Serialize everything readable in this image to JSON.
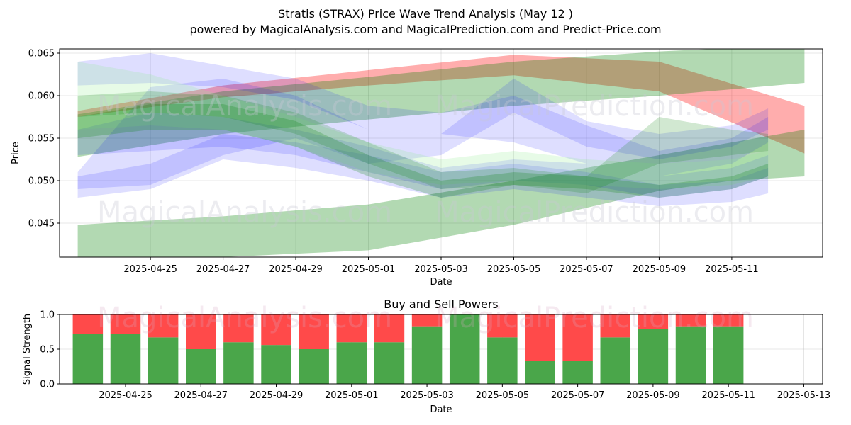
{
  "title": "Stratis (STRAX) Price Wave Trend Analysis (May 12 )",
  "subtitle": "powered by MagicalAnalysis.com and MagicalPrediction.com and Predict-Price.com",
  "watermarks": [
    "MagicalAnalysis.com",
    "MagicalPrediction.com"
  ],
  "chart_data": [
    {
      "type": "area",
      "title": "",
      "xlabel": "Date",
      "ylabel": "Price",
      "xlim": [
        "2025-04-22T12:00",
        "2025-05-13T12:00"
      ],
      "ylim": [
        0.041,
        0.0655
      ],
      "x_ticks": [
        "2025-04-25",
        "2025-04-27",
        "2025-04-29",
        "2025-05-01",
        "2025-05-03",
        "2025-05-05",
        "2025-05-07",
        "2025-05-09",
        "2025-05-11"
      ],
      "y_ticks": [
        0.045,
        0.05,
        0.055,
        0.06,
        0.065
      ],
      "y_tick_labels": [
        "0.045",
        "0.050",
        "0.055",
        "0.060",
        "0.065"
      ],
      "grid": true,
      "colors": {
        "red": "#ff0000",
        "green": "#008000",
        "blue": "#0000ff",
        "light_green": "#90ee90"
      },
      "bands": [
        {
          "color": "red",
          "opacity": 0.32,
          "x": [
            "2025-04-23",
            "2025-04-27",
            "2025-05-01",
            "2025-05-05",
            "2025-05-09",
            "2025-05-13"
          ],
          "lower": [
            0.0575,
            0.0598,
            0.0612,
            0.0624,
            0.0605,
            0.0532
          ],
          "upper": [
            0.0582,
            0.0612,
            0.063,
            0.0648,
            0.064,
            0.0588
          ]
        },
        {
          "color": "green",
          "opacity": 0.3,
          "x": [
            "2025-04-23",
            "2025-04-27",
            "2025-05-01",
            "2025-05-05",
            "2025-05-09",
            "2025-05-13"
          ],
          "lower": [
            0.0528,
            0.0555,
            0.0572,
            0.0588,
            0.06,
            0.0615
          ],
          "upper": [
            0.0578,
            0.0605,
            0.0622,
            0.064,
            0.0652,
            0.066
          ]
        },
        {
          "color": "green",
          "opacity": 0.3,
          "x": [
            "2025-04-23",
            "2025-04-27",
            "2025-05-01",
            "2025-05-05",
            "2025-05-09",
            "2025-05-11",
            "2025-05-13"
          ],
          "lower": [
            0.041,
            0.041,
            0.0418,
            0.0448,
            0.0488,
            0.05,
            0.0505
          ],
          "upper": [
            0.0448,
            0.0458,
            0.0472,
            0.05,
            0.053,
            0.0545,
            0.056
          ]
        },
        {
          "color": "blue",
          "opacity": 0.13,
          "x": [
            "2025-04-23",
            "2025-04-25",
            "2025-04-27",
            "2025-04-29",
            "2025-05-01",
            "2025-05-03",
            "2025-05-05",
            "2025-05-07",
            "2025-05-09",
            "2025-05-11",
            "2025-05-12"
          ],
          "lower": [
            0.0612,
            0.0615,
            0.061,
            0.0595,
            0.056,
            0.0555,
            0.0545,
            0.052,
            0.0505,
            0.052,
            0.0545
          ],
          "upper": [
            0.064,
            0.065,
            0.0635,
            0.062,
            0.0588,
            0.058,
            0.06,
            0.0565,
            0.0535,
            0.055,
            0.0575
          ]
        },
        {
          "color": "blue",
          "opacity": 0.13,
          "x": [
            "2025-04-23",
            "2025-04-25",
            "2025-04-27",
            "2025-04-29",
            "2025-05-01",
            "2025-05-03",
            "2025-05-05",
            "2025-05-07",
            "2025-05-09",
            "2025-05-11",
            "2025-05-12"
          ],
          "lower": [
            0.049,
            0.0495,
            0.053,
            0.055,
            0.052,
            0.053,
            0.058,
            0.054,
            0.0525,
            0.054,
            0.056
          ],
          "upper": [
            0.051,
            0.061,
            0.062,
            0.06,
            0.056,
            0.0555,
            0.062,
            0.057,
            0.0555,
            0.0565,
            0.0585
          ]
        },
        {
          "color": "blue",
          "opacity": 0.13,
          "x": [
            "2025-04-23",
            "2025-04-25",
            "2025-04-27",
            "2025-04-29",
            "2025-05-01",
            "2025-05-03",
            "2025-05-05",
            "2025-05-07",
            "2025-05-09",
            "2025-05-11",
            "2025-05-12"
          ],
          "lower": [
            0.048,
            0.049,
            0.0525,
            0.0515,
            0.05,
            0.048,
            0.049,
            0.048,
            0.047,
            0.0475,
            0.0485
          ],
          "upper": [
            0.0505,
            0.052,
            0.0555,
            0.0545,
            0.053,
            0.051,
            0.052,
            0.051,
            0.0495,
            0.05,
            0.0515
          ]
        },
        {
          "color": "blue",
          "opacity": 0.13,
          "x": [
            "2025-04-23",
            "2025-04-25",
            "2025-04-27",
            "2025-04-29",
            "2025-05-01",
            "2025-05-03",
            "2025-05-05",
            "2025-05-07",
            "2025-05-09",
            "2025-05-11",
            "2025-05-12"
          ],
          "lower": [
            0.053,
            0.0535,
            0.054,
            0.053,
            0.051,
            0.049,
            0.05,
            0.0495,
            0.048,
            0.049,
            0.0505
          ],
          "upper": [
            0.056,
            0.058,
            0.0575,
            0.056,
            0.054,
            0.0515,
            0.0525,
            0.052,
            0.0505,
            0.0515,
            0.053
          ]
        },
        {
          "color": "light_green",
          "opacity": 0.22,
          "x": [
            "2025-04-23",
            "2025-04-25",
            "2025-04-27",
            "2025-04-29",
            "2025-05-01",
            "2025-05-03",
            "2025-05-05",
            "2025-05-07",
            "2025-05-09",
            "2025-05-11",
            "2025-05-12"
          ],
          "lower": [
            0.056,
            0.0565,
            0.056,
            0.054,
            0.051,
            0.0495,
            0.05,
            0.0495,
            0.049,
            0.0495,
            0.0505
          ],
          "upper": [
            0.064,
            0.0625,
            0.06,
            0.0575,
            0.0545,
            0.0525,
            0.0535,
            0.0525,
            0.052,
            0.0525,
            0.0535
          ]
        },
        {
          "color": "green",
          "opacity": 0.22,
          "x": [
            "2025-04-23",
            "2025-04-25",
            "2025-04-27",
            "2025-04-29",
            "2025-05-01",
            "2025-05-03",
            "2025-05-05",
            "2025-05-07",
            "2025-05-09",
            "2025-05-11",
            "2025-05-12"
          ],
          "lower": [
            0.055,
            0.056,
            0.056,
            0.054,
            0.0505,
            0.048,
            0.0495,
            0.049,
            0.048,
            0.049,
            0.0505
          ],
          "upper": [
            0.0575,
            0.059,
            0.059,
            0.057,
            0.053,
            0.05,
            0.051,
            0.0505,
            0.0495,
            0.0505,
            0.052
          ]
        },
        {
          "color": "green",
          "opacity": 0.18,
          "x": [
            "2025-04-23",
            "2025-04-25",
            "2025-04-27",
            "2025-04-29",
            "2025-05-01",
            "2025-05-03",
            "2025-05-05",
            "2025-05-07",
            "2025-05-09",
            "2025-05-11",
            "2025-05-12"
          ],
          "lower": [
            0.0575,
            0.058,
            0.0575,
            0.0555,
            0.052,
            0.049,
            0.0495,
            0.0485,
            0.052,
            0.053,
            0.0535
          ],
          "upper": [
            0.06,
            0.0605,
            0.06,
            0.058,
            0.0545,
            0.051,
            0.0515,
            0.0505,
            0.0575,
            0.056,
            0.0555
          ]
        }
      ]
    },
    {
      "type": "bar",
      "title": "Buy and Sell Powers",
      "xlabel": "Date",
      "ylabel": "Signal Strength",
      "ylim": [
        0.0,
        1.0
      ],
      "xlim": [
        "2025-04-23T06:00",
        "2025-05-13T12:00"
      ],
      "y_ticks": [
        0.0,
        0.5,
        1.0
      ],
      "y_tick_labels": [
        "0.0",
        "0.5",
        "1.0"
      ],
      "x_ticks": [
        "2025-04-25",
        "2025-04-27",
        "2025-04-29",
        "2025-05-01",
        "2025-05-03",
        "2025-05-05",
        "2025-05-07",
        "2025-05-09",
        "2025-05-11",
        "2025-05-13"
      ],
      "grid": true,
      "colors": {
        "buy": "#4aa64a",
        "sell": "#ff4a4a"
      },
      "categories": [
        "2025-04-24",
        "2025-04-25",
        "2025-04-26",
        "2025-04-27",
        "2025-04-28",
        "2025-04-29",
        "2025-04-30",
        "2025-05-01",
        "2025-05-02",
        "2025-05-03",
        "2025-05-04",
        "2025-05-05",
        "2025-05-06",
        "2025-05-07",
        "2025-05-08",
        "2025-05-09",
        "2025-05-10",
        "2025-05-11"
      ],
      "series": [
        {
          "name": "buy",
          "values": [
            0.72,
            0.72,
            0.67,
            0.5,
            0.6,
            0.56,
            0.5,
            0.6,
            0.6,
            0.83,
            1.0,
            0.67,
            0.33,
            0.33,
            0.67,
            0.79,
            0.83,
            0.83
          ]
        },
        {
          "name": "sell",
          "values": [
            0.28,
            0.28,
            0.33,
            0.5,
            0.4,
            0.44,
            0.5,
            0.4,
            0.4,
            0.17,
            0.0,
            0.33,
            0.67,
            0.67,
            0.33,
            0.21,
            0.17,
            0.17
          ]
        }
      ]
    }
  ]
}
